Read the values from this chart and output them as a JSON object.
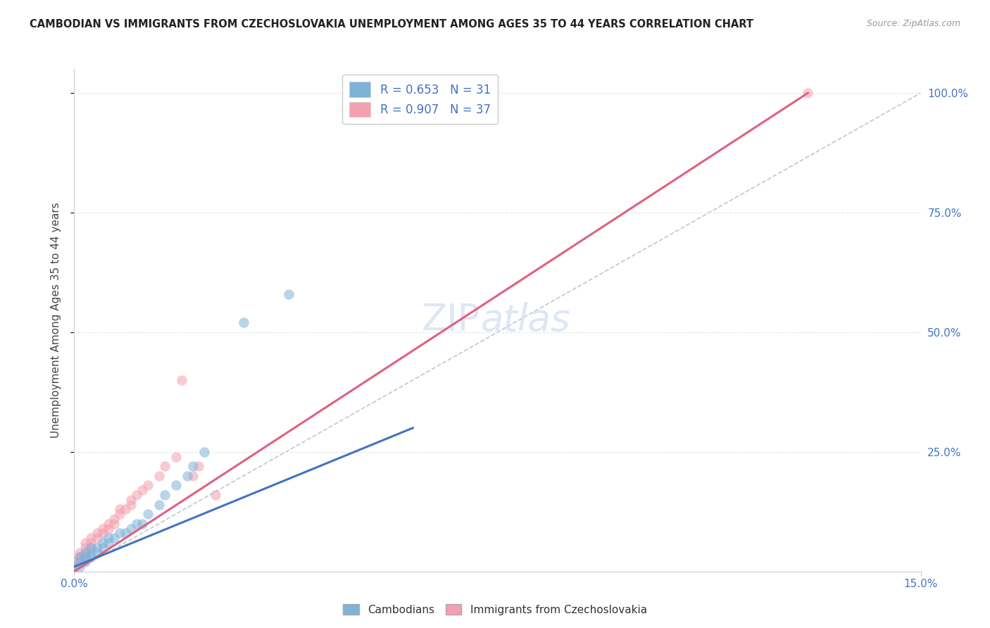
{
  "title": "CAMBODIAN VS IMMIGRANTS FROM CZECHOSLOVAKIA UNEMPLOYMENT AMONG AGES 35 TO 44 YEARS CORRELATION CHART",
  "source": "Source: ZipAtlas.com",
  "ylabel": "Unemployment Among Ages 35 to 44 years",
  "xlim": [
    0.0,
    0.15
  ],
  "ylim": [
    0.0,
    1.05
  ],
  "ytick_labels": [
    "25.0%",
    "50.0%",
    "75.0%",
    "100.0%"
  ],
  "ytick_positions": [
    0.25,
    0.5,
    0.75,
    1.0
  ],
  "legend_entries": [
    {
      "label": "R = 0.653   N = 31",
      "color": "#a8c4e0"
    },
    {
      "label": "R = 0.907   N = 37",
      "color": "#f4a7b9"
    }
  ],
  "cambodian_scatter_x": [
    0.0,
    0.001,
    0.001,
    0.001,
    0.002,
    0.002,
    0.002,
    0.003,
    0.003,
    0.003,
    0.004,
    0.004,
    0.005,
    0.005,
    0.006,
    0.006,
    0.007,
    0.008,
    0.009,
    0.01,
    0.011,
    0.012,
    0.013,
    0.015,
    0.016,
    0.018,
    0.02,
    0.021,
    0.023,
    0.03,
    0.038
  ],
  "cambodian_scatter_y": [
    0.01,
    0.01,
    0.02,
    0.03,
    0.02,
    0.03,
    0.04,
    0.03,
    0.04,
    0.05,
    0.04,
    0.05,
    0.05,
    0.06,
    0.06,
    0.07,
    0.07,
    0.08,
    0.08,
    0.09,
    0.1,
    0.1,
    0.12,
    0.14,
    0.16,
    0.18,
    0.2,
    0.22,
    0.25,
    0.52,
    0.58
  ],
  "czech_scatter_x": [
    0.0,
    0.0,
    0.001,
    0.001,
    0.001,
    0.001,
    0.002,
    0.002,
    0.002,
    0.002,
    0.003,
    0.003,
    0.003,
    0.004,
    0.004,
    0.005,
    0.005,
    0.006,
    0.006,
    0.007,
    0.007,
    0.008,
    0.008,
    0.009,
    0.01,
    0.01,
    0.011,
    0.012,
    0.013,
    0.015,
    0.016,
    0.018,
    0.019,
    0.021,
    0.022,
    0.025,
    0.13
  ],
  "czech_scatter_y": [
    0.01,
    0.02,
    0.02,
    0.03,
    0.03,
    0.04,
    0.03,
    0.04,
    0.05,
    0.06,
    0.05,
    0.06,
    0.07,
    0.07,
    0.08,
    0.08,
    0.09,
    0.09,
    0.1,
    0.1,
    0.11,
    0.12,
    0.13,
    0.13,
    0.14,
    0.15,
    0.16,
    0.17,
    0.18,
    0.2,
    0.22,
    0.24,
    0.4,
    0.2,
    0.22,
    0.16,
    1.0
  ],
  "cambodian_line_x": [
    0.0,
    0.06
  ],
  "cambodian_line_y": [
    0.01,
    0.3
  ],
  "czech_line_x": [
    0.0,
    0.13
  ],
  "czech_line_y": [
    0.0,
    1.0
  ],
  "diagonal_line_x": [
    0.0,
    0.15
  ],
  "diagonal_line_y": [
    0.0,
    1.0
  ],
  "cambodian_color": "#7eb3d8",
  "czech_color": "#f4a0b0",
  "cambodian_line_color": "#4472c4",
  "czech_line_color": "#e06080",
  "diagonal_color": "#b0b8c8",
  "background_color": "#ffffff",
  "grid_color": "#e8e8e8",
  "axis_color": "#4472c4",
  "title_color": "#222222",
  "source_color": "#999999",
  "watermark_zip": "ZIP",
  "watermark_atlas": "atlas"
}
